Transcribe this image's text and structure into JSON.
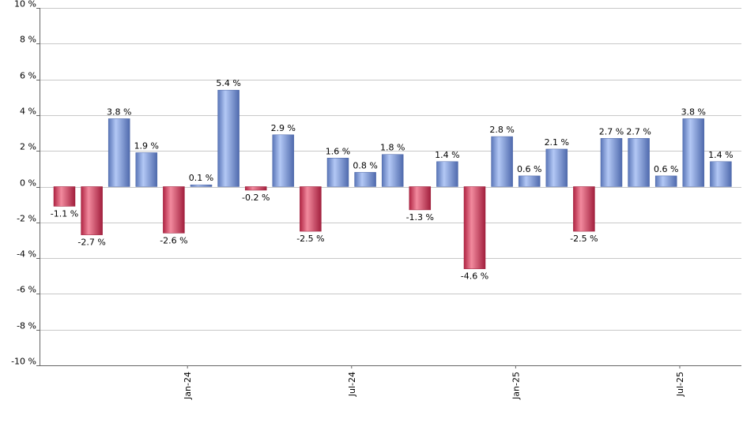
{
  "chart_data": {
    "type": "bar",
    "ylim": [
      -10,
      10
    ],
    "y_ticks": [
      10,
      8,
      6,
      4,
      2,
      0,
      -2,
      -4,
      -6,
      -8,
      -10
    ],
    "y_tick_labels": [
      "10 %",
      "8 %",
      "6 %",
      "4 %",
      "2 %",
      "0 %",
      "-2 %",
      "-4 %",
      "-6 %",
      "-8 %",
      "-10 %"
    ],
    "x_tick_labels": [
      {
        "label": "Jan-24",
        "at_index": 4
      },
      {
        "label": "Jul-24",
        "at_index": 10
      },
      {
        "label": "Jan-25",
        "at_index": 16
      },
      {
        "label": "Jul-25",
        "at_index": 22
      }
    ],
    "values": [
      -1.1,
      -2.7,
      3.8,
      1.9,
      -2.6,
      0.1,
      5.4,
      -0.2,
      2.9,
      -2.5,
      1.6,
      0.8,
      1.8,
      -1.3,
      1.4,
      -4.6,
      2.8,
      0.6,
      2.1,
      -2.5,
      2.7,
      2.7,
      0.6,
      3.8,
      1.4
    ],
    "data_labels": [
      "-1.1 %",
      "-2.7 %",
      "3.8 %",
      "1.9 %",
      "-2.6 %",
      "0.1 %",
      "5.4 %",
      "-0.2 %",
      "2.9 %",
      "-2.5 %",
      "1.6 %",
      "0.8 %",
      "1.8 %",
      "-1.3 %",
      "1.4 %",
      "-4.6 %",
      "2.8 %",
      "0.6 %",
      "2.1 %",
      "-2.5 %",
      "2.7 %",
      "2.7 %",
      "0.6 %",
      "3.8 %",
      "1.4 %"
    ],
    "grid": true,
    "colors": {
      "positive": "#6f8fd8",
      "negative": "#c8304c"
    }
  }
}
